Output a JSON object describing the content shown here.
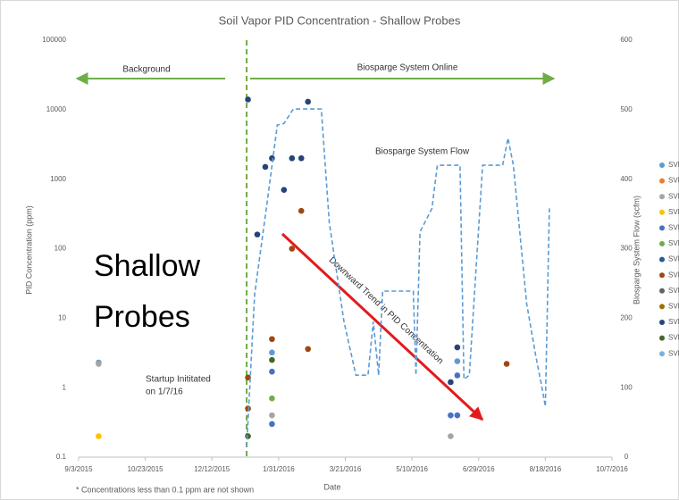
{
  "chart_data": {
    "type": "scatter",
    "title": "Soil Vapor PID Concentration - Shallow Probes",
    "x_label": "Date",
    "y_label": "PID Concentration (ppm)",
    "y2_label": "Biosparge System Flow (scfm)",
    "footnote": "* Concentrations less than 0.1 ppm are not shown",
    "overlay_text": [
      "Shallow",
      "Probes"
    ],
    "annotations": {
      "background": "Background",
      "online": "Biosparge System Online",
      "startup": [
        "Startup Inititated",
        "on 1/7/16"
      ],
      "trend": "Downward Trend in PID Concentration"
    },
    "startup_date": "2016-01-07",
    "y_scale": "log",
    "xlim": [
      "2015-09-03",
      "2016-10-07"
    ],
    "xticks": [
      {
        "value": "2015-09-03",
        "label": "9/3/2015"
      },
      {
        "value": "2015-10-23",
        "label": "10/23/2015"
      },
      {
        "value": "2015-12-12",
        "label": "12/12/2015"
      },
      {
        "value": "2016-01-31",
        "label": "1/31/2016"
      },
      {
        "value": "2016-03-21",
        "label": "3/21/2016"
      },
      {
        "value": "2016-05-10",
        "label": "5/10/2016"
      },
      {
        "value": "2016-06-29",
        "label": "6/29/2016"
      },
      {
        "value": "2016-08-18",
        "label": "8/18/2016"
      },
      {
        "value": "2016-10-07",
        "label": "10/7/2016"
      }
    ],
    "ylim": [
      0.1,
      100000
    ],
    "yticks": [
      0.1,
      1,
      10,
      100,
      1000,
      10000,
      100000
    ],
    "y2lim": [
      0,
      600
    ],
    "y2ticks": [
      0,
      100,
      200,
      300,
      400,
      500,
      600
    ],
    "grid": false,
    "legend": "right",
    "series": [
      {
        "name": "SVM",
        "color": "#5b9bd5",
        "x": [
          "2015-09-18",
          "2016-01-26",
          "2016-06-13"
        ],
        "values": [
          2.3,
          3.2,
          2.4
        ]
      },
      {
        "name": "SVM",
        "color": "#ed7d31",
        "x": [],
        "values": []
      },
      {
        "name": "SVM",
        "color": "#a5a5a5",
        "x": [
          "2015-09-18",
          "2016-01-26",
          "2016-06-08"
        ],
        "values": [
          2.2,
          0.4,
          0.2
        ]
      },
      {
        "name": "SVM",
        "color": "#ffc000",
        "x": [
          "2015-09-18"
        ],
        "values": [
          0.2
        ]
      },
      {
        "name": "SVM",
        "color": "#4472c4",
        "x": [
          "2016-01-26",
          "2016-01-26",
          "2016-06-08",
          "2016-06-13",
          "2016-06-13"
        ],
        "values": [
          1.7,
          0.3,
          0.4,
          0.4,
          1.5
        ]
      },
      {
        "name": "SVM",
        "color": "#70ad47",
        "x": [
          "2016-01-26"
        ],
        "values": [
          0.7
        ]
      },
      {
        "name": "SVM",
        "color": "#255e91",
        "x": [],
        "values": []
      },
      {
        "name": "SVM",
        "color": "#9e480e",
        "x": [
          "2016-01-08",
          "2016-01-08",
          "2016-01-26",
          "2016-02-10",
          "2016-02-17",
          "2016-02-22",
          "2016-07-20"
        ],
        "values": [
          1.4,
          0.5,
          5,
          100,
          350,
          3.6,
          2.2
        ]
      },
      {
        "name": "SVM",
        "color": "#636363",
        "x": [],
        "values": []
      },
      {
        "name": "SVM",
        "color": "#997300",
        "x": [],
        "values": []
      },
      {
        "name": "SVM",
        "color": "#264478",
        "x": [
          "2016-01-08",
          "2016-01-15",
          "2016-01-21",
          "2016-01-26",
          "2016-02-04",
          "2016-02-10",
          "2016-02-17",
          "2016-02-22",
          "2016-06-08",
          "2016-06-13"
        ],
        "values": [
          14000,
          160,
          1500,
          2000,
          700,
          2000,
          2000,
          13000,
          1.2,
          3.8
        ]
      },
      {
        "name": "SVM",
        "color": "#43682b",
        "x": [
          "2016-01-08",
          "2016-01-26"
        ],
        "values": [
          0.2,
          2.5
        ]
      },
      {
        "name": "SVM",
        "color": "#7cafdd",
        "x": [],
        "values": []
      },
      {
        "name": "Biosparge System Flow",
        "type": "line",
        "axis": "y2",
        "color": "#5b9bd5",
        "dashed": true,
        "x": [
          "2016-01-07",
          "2016-01-13",
          "2016-01-23",
          "2016-01-30",
          "2016-02-04",
          "2016-02-11",
          "2016-03-03",
          "2016-03-09",
          "2016-03-20",
          "2016-03-29",
          "2016-04-07",
          "2016-04-11",
          "2016-04-15",
          "2016-04-18",
          "2016-05-11",
          "2016-05-13",
          "2016-05-16",
          "2016-05-25",
          "2016-05-29",
          "2016-06-15",
          "2016-06-18",
          "2016-06-22",
          "2016-07-02",
          "2016-07-17",
          "2016-07-21",
          "2016-07-25",
          "2016-08-04",
          "2016-08-11",
          "2016-08-15",
          "2016-08-18",
          "2016-08-21"
        ],
        "values": [
          15,
          234,
          375,
          478,
          480,
          501,
          501,
          337,
          195,
          118,
          118,
          195,
          118,
          239,
          239,
          118,
          324,
          358,
          420,
          420,
          112,
          118,
          420,
          420,
          459,
          420,
          221,
          144,
          105,
          73,
          358
        ]
      }
    ]
  }
}
